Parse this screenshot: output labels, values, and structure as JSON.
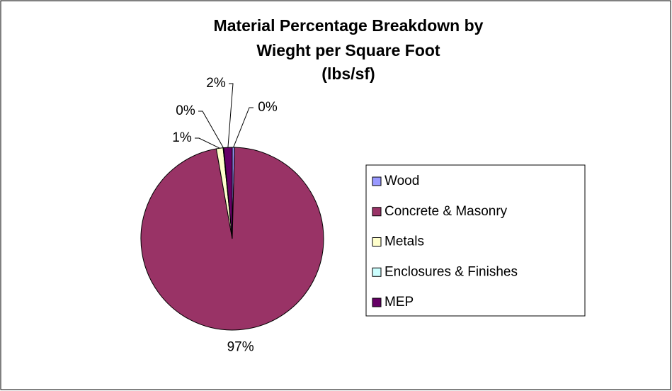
{
  "chart_data": {
    "type": "pie",
    "title": [
      "Material Percentage Breakdown by",
      "Wieght per Square Foot",
      "(lbs/sf)"
    ],
    "categories": [
      "Wood",
      "Concrete & Masonry",
      "Metals",
      "Enclosures & Finishes",
      "MEP"
    ],
    "values": [
      0.4,
      96.8,
      1.2,
      0.1,
      1.5
    ],
    "value_labels": [
      "0%",
      "97%",
      "1%",
      "0%",
      "2%"
    ],
    "colors": [
      "#9999ff",
      "#993366",
      "#ffffcc",
      "#ccffff",
      "#660066"
    ],
    "legend": "right"
  }
}
